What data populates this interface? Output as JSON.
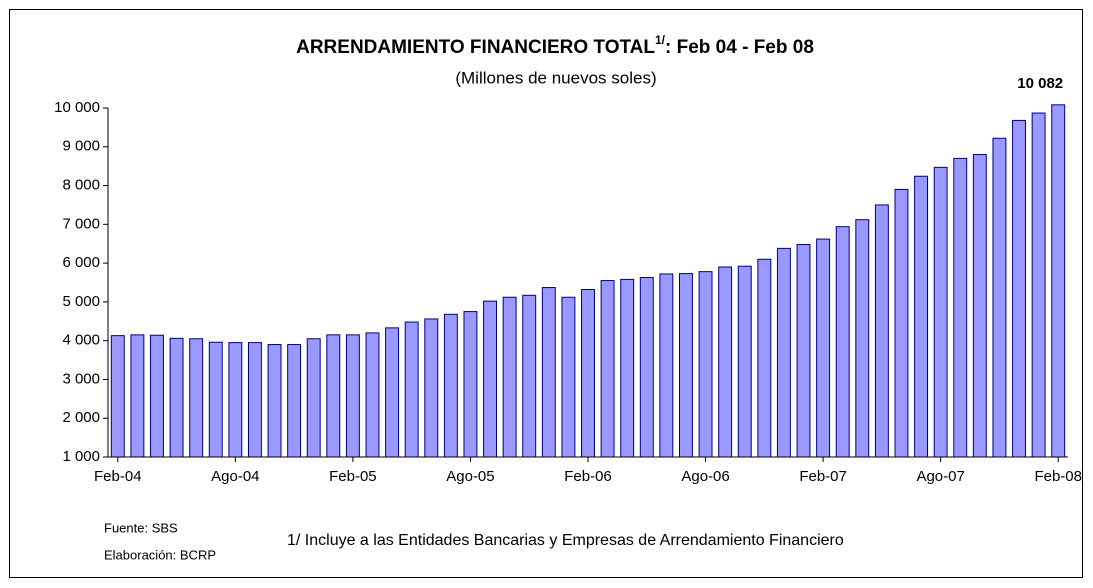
{
  "chart_data": {
    "type": "bar",
    "title": "ARRENDAMIENTO FINANCIERO TOTAL",
    "title_note": "1/",
    "title_suffix": ":  Feb 04 - Feb 08",
    "subtitle": "(Millones de nuevos soles)",
    "categories": [
      "Feb-04",
      null,
      null,
      null,
      null,
      null,
      "Ago-04",
      null,
      null,
      null,
      null,
      null,
      "Feb-05",
      null,
      null,
      null,
      null,
      null,
      "Ago-05",
      null,
      null,
      null,
      null,
      null,
      "Feb-06",
      null,
      null,
      null,
      null,
      null,
      "Ago-06",
      null,
      null,
      null,
      null,
      null,
      "Feb-07",
      null,
      null,
      null,
      null,
      null,
      "Ago-07",
      null,
      null,
      null,
      null,
      null,
      "Feb-08"
    ],
    "values": [
      4130,
      4150,
      4140,
      4060,
      4050,
      3960,
      3950,
      3950,
      3900,
      3900,
      4050,
      4150,
      4150,
      4200,
      4330,
      4480,
      4560,
      4680,
      4750,
      5020,
      5120,
      5170,
      5370,
      5120,
      5320,
      5550,
      5580,
      5630,
      5720,
      5730,
      5780,
      5900,
      5920,
      6100,
      6380,
      6480,
      6620,
      6940,
      7120,
      7500,
      7900,
      8240,
      8470,
      8700,
      8800,
      9220,
      9680,
      9870,
      10082
    ],
    "value_labels": [
      null,
      null,
      null,
      null,
      null,
      null,
      null,
      null,
      null,
      null,
      null,
      null,
      null,
      null,
      null,
      null,
      null,
      null,
      null,
      null,
      null,
      null,
      null,
      null,
      null,
      null,
      null,
      null,
      null,
      null,
      null,
      null,
      null,
      null,
      null,
      null,
      null,
      null,
      null,
      null,
      null,
      null,
      null,
      null,
      null,
      null,
      null,
      null,
      "10 082"
    ],
    "color": "#9999ff",
    "ylim": [
      1000,
      10000
    ],
    "yticks": [
      {
        "value": 1000,
        "label": "1 000"
      },
      {
        "value": 2000,
        "label": "2 000"
      },
      {
        "value": 3000,
        "label": "3 000"
      },
      {
        "value": 4000,
        "label": "4 000"
      },
      {
        "value": 5000,
        "label": "5 000"
      },
      {
        "value": 6000,
        "label": "6 000"
      },
      {
        "value": 7000,
        "label": "7 000"
      },
      {
        "value": 8000,
        "label": "8 000"
      },
      {
        "value": 9000,
        "label": "9 000"
      },
      {
        "value": 10000,
        "label": "10 000"
      }
    ],
    "grid": false,
    "source": "Fuente: SBS",
    "credit": "Elaboración: BCRP",
    "footnote": "1/ Incluye a  las Entidades Bancarias y Empresas de Arrendamiento Financiero"
  }
}
